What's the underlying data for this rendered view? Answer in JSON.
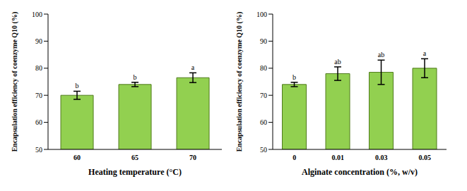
{
  "chart_data": [
    {
      "type": "bar",
      "x_label": "Heating temperature (°C)",
      "y_label": "Encapsulation efficiency of coenzyme Q10 (%)",
      "categories": [
        "60",
        "65",
        "70"
      ],
      "values": [
        70,
        74,
        76.5
      ],
      "errors": [
        1.5,
        0.8,
        1.8
      ],
      "annotations": [
        "b",
        "b",
        "a"
      ],
      "color": "#92d050",
      "ylim": [
        50,
        100
      ],
      "yticks": [
        50,
        60,
        70,
        80,
        90,
        100
      ],
      "grid": false
    },
    {
      "type": "bar",
      "x_label": "Alginate concentration (%, w/v)",
      "y_label": "Encapsulation efficiency of coenzyme Q10 (%)",
      "categories": [
        "0",
        "0.01",
        "0.03",
        "0.05"
      ],
      "values": [
        74,
        78,
        78.5,
        80
      ],
      "errors": [
        0.8,
        2.5,
        4.5,
        3.5
      ],
      "annotations": [
        "b",
        "ab",
        "ab",
        "a"
      ],
      "color": "#92d050",
      "ylim": [
        50,
        100
      ],
      "yticks": [
        50,
        60,
        70,
        80,
        90,
        100
      ],
      "grid": false
    }
  ]
}
